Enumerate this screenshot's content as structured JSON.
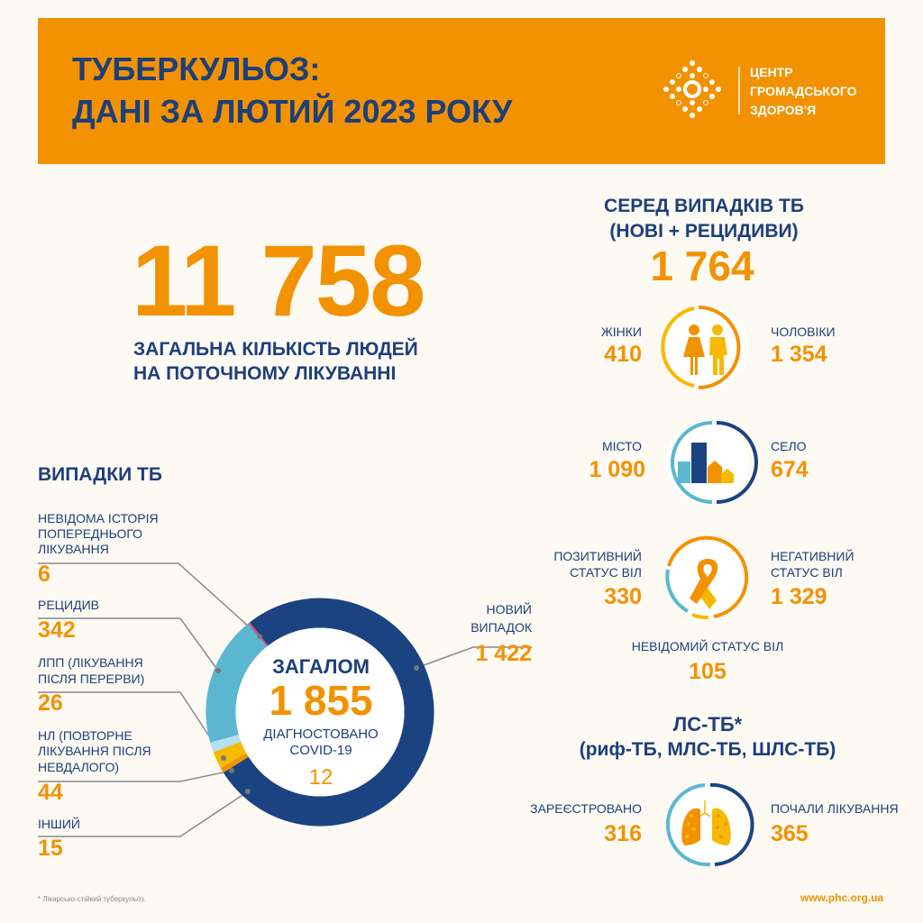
{
  "header": {
    "title_line1": "ТУБЕРКУЛЬОЗ:",
    "title_line2": "ДАНІ ЗА ЛЮТИЙ 2023 РОКУ",
    "logo_lines": [
      "ЦЕНТР",
      "ГРОМАДСЬКОГО",
      "ЗДОРОВ'Я"
    ]
  },
  "total": {
    "value": "11 758",
    "label_line1": "ЗАГАЛЬНА КІЛЬКІСТЬ ЛЮДЕЙ",
    "label_line2": "НА ПОТОЧНОМУ ЛІКУВАННІ"
  },
  "among": {
    "title_line1": "СЕРЕД ВИПАДКІВ ТБ",
    "title_line2": "(НОВІ + РЕЦИДИВИ)",
    "value": "1 764",
    "women": {
      "label": "ЖІНКИ",
      "value": "410"
    },
    "men": {
      "label": "ЧОЛОВІКИ",
      "value": "1 354"
    },
    "city": {
      "label": "МІСТО",
      "value": "1 090"
    },
    "village": {
      "label": "СЕЛО",
      "value": "674"
    },
    "hiv_pos": {
      "label_line1": "ПОЗИТИВНИЙ",
      "label_line2": "СТАТУС ВІЛ",
      "value": "330"
    },
    "hiv_neg": {
      "label_line1": "НЕГАТИВНИЙ",
      "label_line2": "СТАТУС  ВІЛ",
      "value": "1 329"
    },
    "hiv_unknown": {
      "label": "НЕВІДОМИЙ СТАТУС ВІЛ",
      "value": "105"
    }
  },
  "drtb": {
    "title_line1": "ЛС-ТБ*",
    "title_line2": "(риф-ТБ, МЛС-ТБ, ШЛС-ТБ)",
    "registered": {
      "label": "ЗАРЕЄСТРОВАНО",
      "value": "316"
    },
    "started": {
      "label": "ПОЧАЛИ ЛІКУВАННЯ",
      "value": "365"
    }
  },
  "cases": {
    "title": "ВИПАДКИ ТБ",
    "legend": [
      {
        "lines": [
          "НЕВІДОМА ІСТОРІЯ",
          "ПОПЕРЕДНЬОГО",
          "ЛІКУВАННЯ"
        ],
        "value": "6"
      },
      {
        "lines": [
          "РЕЦИДИВ"
        ],
        "value": "342"
      },
      {
        "lines": [
          "ЛПП (ЛІКУВАННЯ",
          "ПІСЛЯ ПЕРЕРВИ)"
        ],
        "value": "26"
      },
      {
        "lines": [
          "НЛ (ПОВТОРНЕ",
          "ЛІКУВАННЯ ПІСЛЯ",
          "НЕВДАЛОГО)"
        ],
        "value": "44"
      },
      {
        "lines": [
          "ІНШИЙ"
        ],
        "value": "15"
      }
    ],
    "new_case": {
      "lines": [
        "НОВИЙ",
        "ВИПАДОК"
      ],
      "value": "1 422"
    },
    "center": {
      "label": "ЗАГАЛОМ",
      "value": "1 855",
      "covid_line1": "ДІАГНОСТОВАНО",
      "covid_line2": "COVID-19",
      "covid_value": "12"
    }
  },
  "chart_data": {
    "type": "pie",
    "variant": "donut",
    "categories": [
      "НОВИЙ ВИПАДОК",
      "ІНШИЙ",
      "НЛ (ПОВТОРНЕ ЛІКУВАННЯ ПІСЛЯ НЕВДАЛОГО)",
      "ЛПП (ЛІКУВАННЯ ПІСЛЯ ПЕРЕРВИ)",
      "РЕЦИДИВ",
      "НЕВІДОМА ІСТОРІЯ ПОПЕРЕДНЬОГО ЛІКУВАННЯ"
    ],
    "values": [
      1422,
      15,
      44,
      26,
      342,
      6
    ],
    "colors": [
      "#1B4382",
      "#F39200",
      "#F7B900",
      "#B5E0EE",
      "#5BB7D0",
      "#D0507F"
    ],
    "total": 1855
  },
  "footer": {
    "footnote": "* Лікарсько-стійкий туберкульоз.",
    "url": "www.phc.org.ua"
  },
  "colors": {
    "accent": "#F39200",
    "navy": "#1D3F7A",
    "light_blue": "#5BB7D0",
    "yellow": "#F7B900",
    "background": "#FDF9F3"
  }
}
